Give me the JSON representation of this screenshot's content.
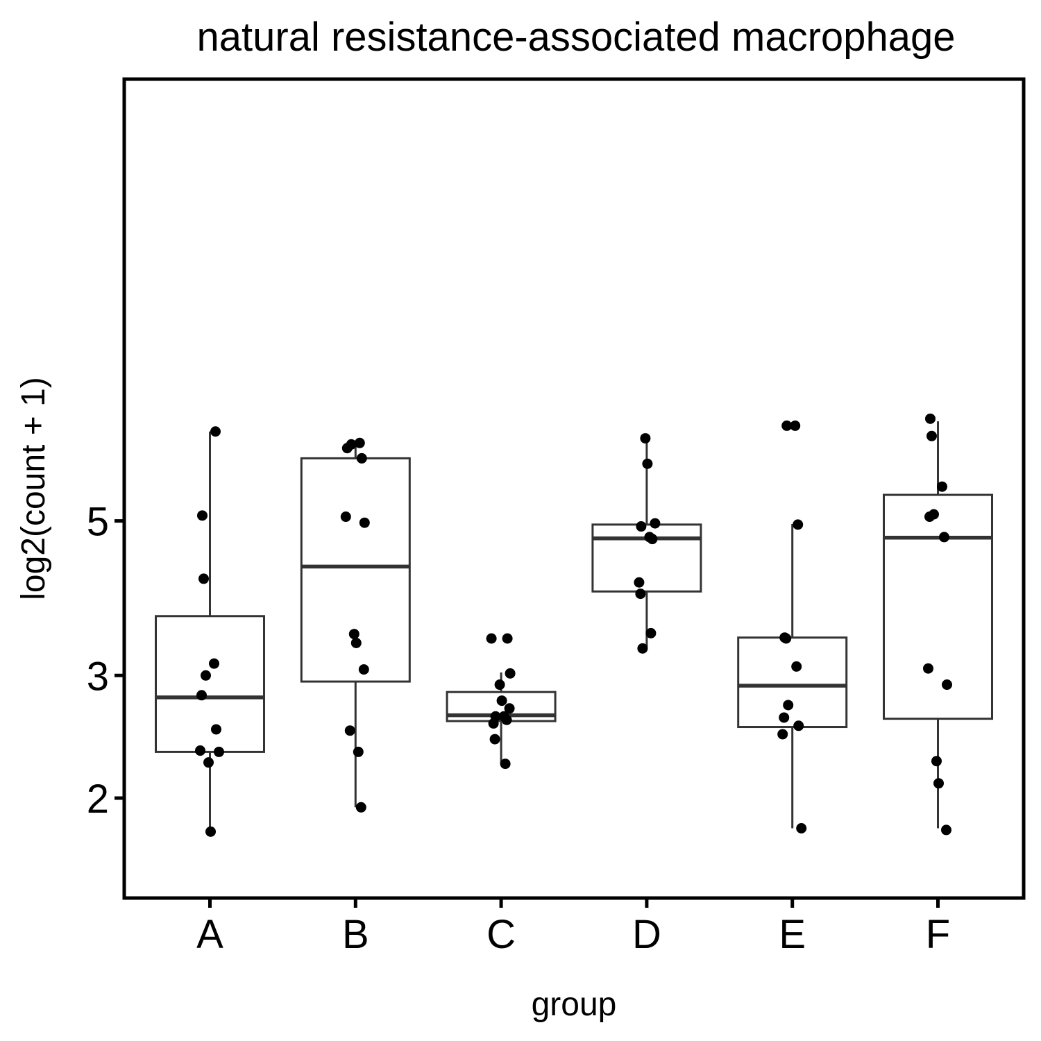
{
  "chart_data": {
    "type": "box",
    "title": "natural resistance-associated macrophage",
    "xlabel": "group",
    "ylabel": "log2(count + 1)",
    "y_scale": "log",
    "ylim": [
      1.75,
      7.2
    ],
    "yticks": [
      2,
      3,
      5
    ],
    "ytick_labels": [
      "2",
      "3",
      "5"
    ],
    "categories": [
      "A",
      "B",
      "C",
      "D",
      "E",
      "F"
    ],
    "grid": false,
    "colors": {
      "box_line": "#333333",
      "point": "#000000",
      "frame": "#000000"
    },
    "boxes": [
      {
        "group": "A",
        "whisker_low": 1.79,
        "q1": 2.33,
        "median": 2.79,
        "q3": 3.65,
        "whisker_high": 6.72
      },
      {
        "group": "B",
        "whisker_low": 1.94,
        "q1": 2.94,
        "median": 4.3,
        "q3": 6.15,
        "whisker_high": 6.45
      },
      {
        "group": "C",
        "whisker_low": 2.24,
        "q1": 2.58,
        "median": 2.63,
        "q3": 2.84,
        "whisker_high": 3.03
      },
      {
        "group": "D",
        "whisker_low": 3.29,
        "q1": 3.96,
        "median": 4.72,
        "q3": 4.94,
        "whisker_high": 6.55
      },
      {
        "group": "E",
        "whisker_low": 1.81,
        "q1": 2.53,
        "median": 2.9,
        "q3": 3.4,
        "whisker_high": 4.95
      },
      {
        "group": "F",
        "whisker_low": 1.81,
        "q1": 2.6,
        "median": 4.73,
        "q3": 5.45,
        "whisker_high": 6.95
      }
    ],
    "points": [
      {
        "group": "A",
        "values": [
          6.72,
          5.09,
          4.13,
          3.12,
          3.0,
          2.81,
          2.51,
          2.34,
          2.33,
          2.25,
          1.79
        ]
      },
      {
        "group": "B",
        "values": [
          6.47,
          6.44,
          6.36,
          6.15,
          5.07,
          4.97,
          3.44,
          3.34,
          3.06,
          2.5,
          2.33,
          1.94
        ]
      },
      {
        "group": "C",
        "values": [
          3.39,
          3.39,
          3.02,
          2.91,
          2.76,
          2.69,
          2.62,
          2.62,
          2.59,
          2.56,
          2.43,
          2.24
        ]
      },
      {
        "group": "D",
        "values": [
          6.57,
          6.04,
          4.96,
          4.91,
          4.74,
          4.71,
          4.08,
          3.93,
          3.45,
          3.28
        ]
      },
      {
        "group": "E",
        "values": [
          6.85,
          6.85,
          4.94,
          3.4,
          3.39,
          3.09,
          2.72,
          2.61,
          2.54,
          2.47,
          1.81
        ]
      },
      {
        "group": "F",
        "values": [
          7.01,
          6.62,
          5.6,
          5.11,
          5.07,
          4.74,
          3.07,
          2.91,
          2.26,
          2.1,
          1.8
        ]
      }
    ]
  }
}
